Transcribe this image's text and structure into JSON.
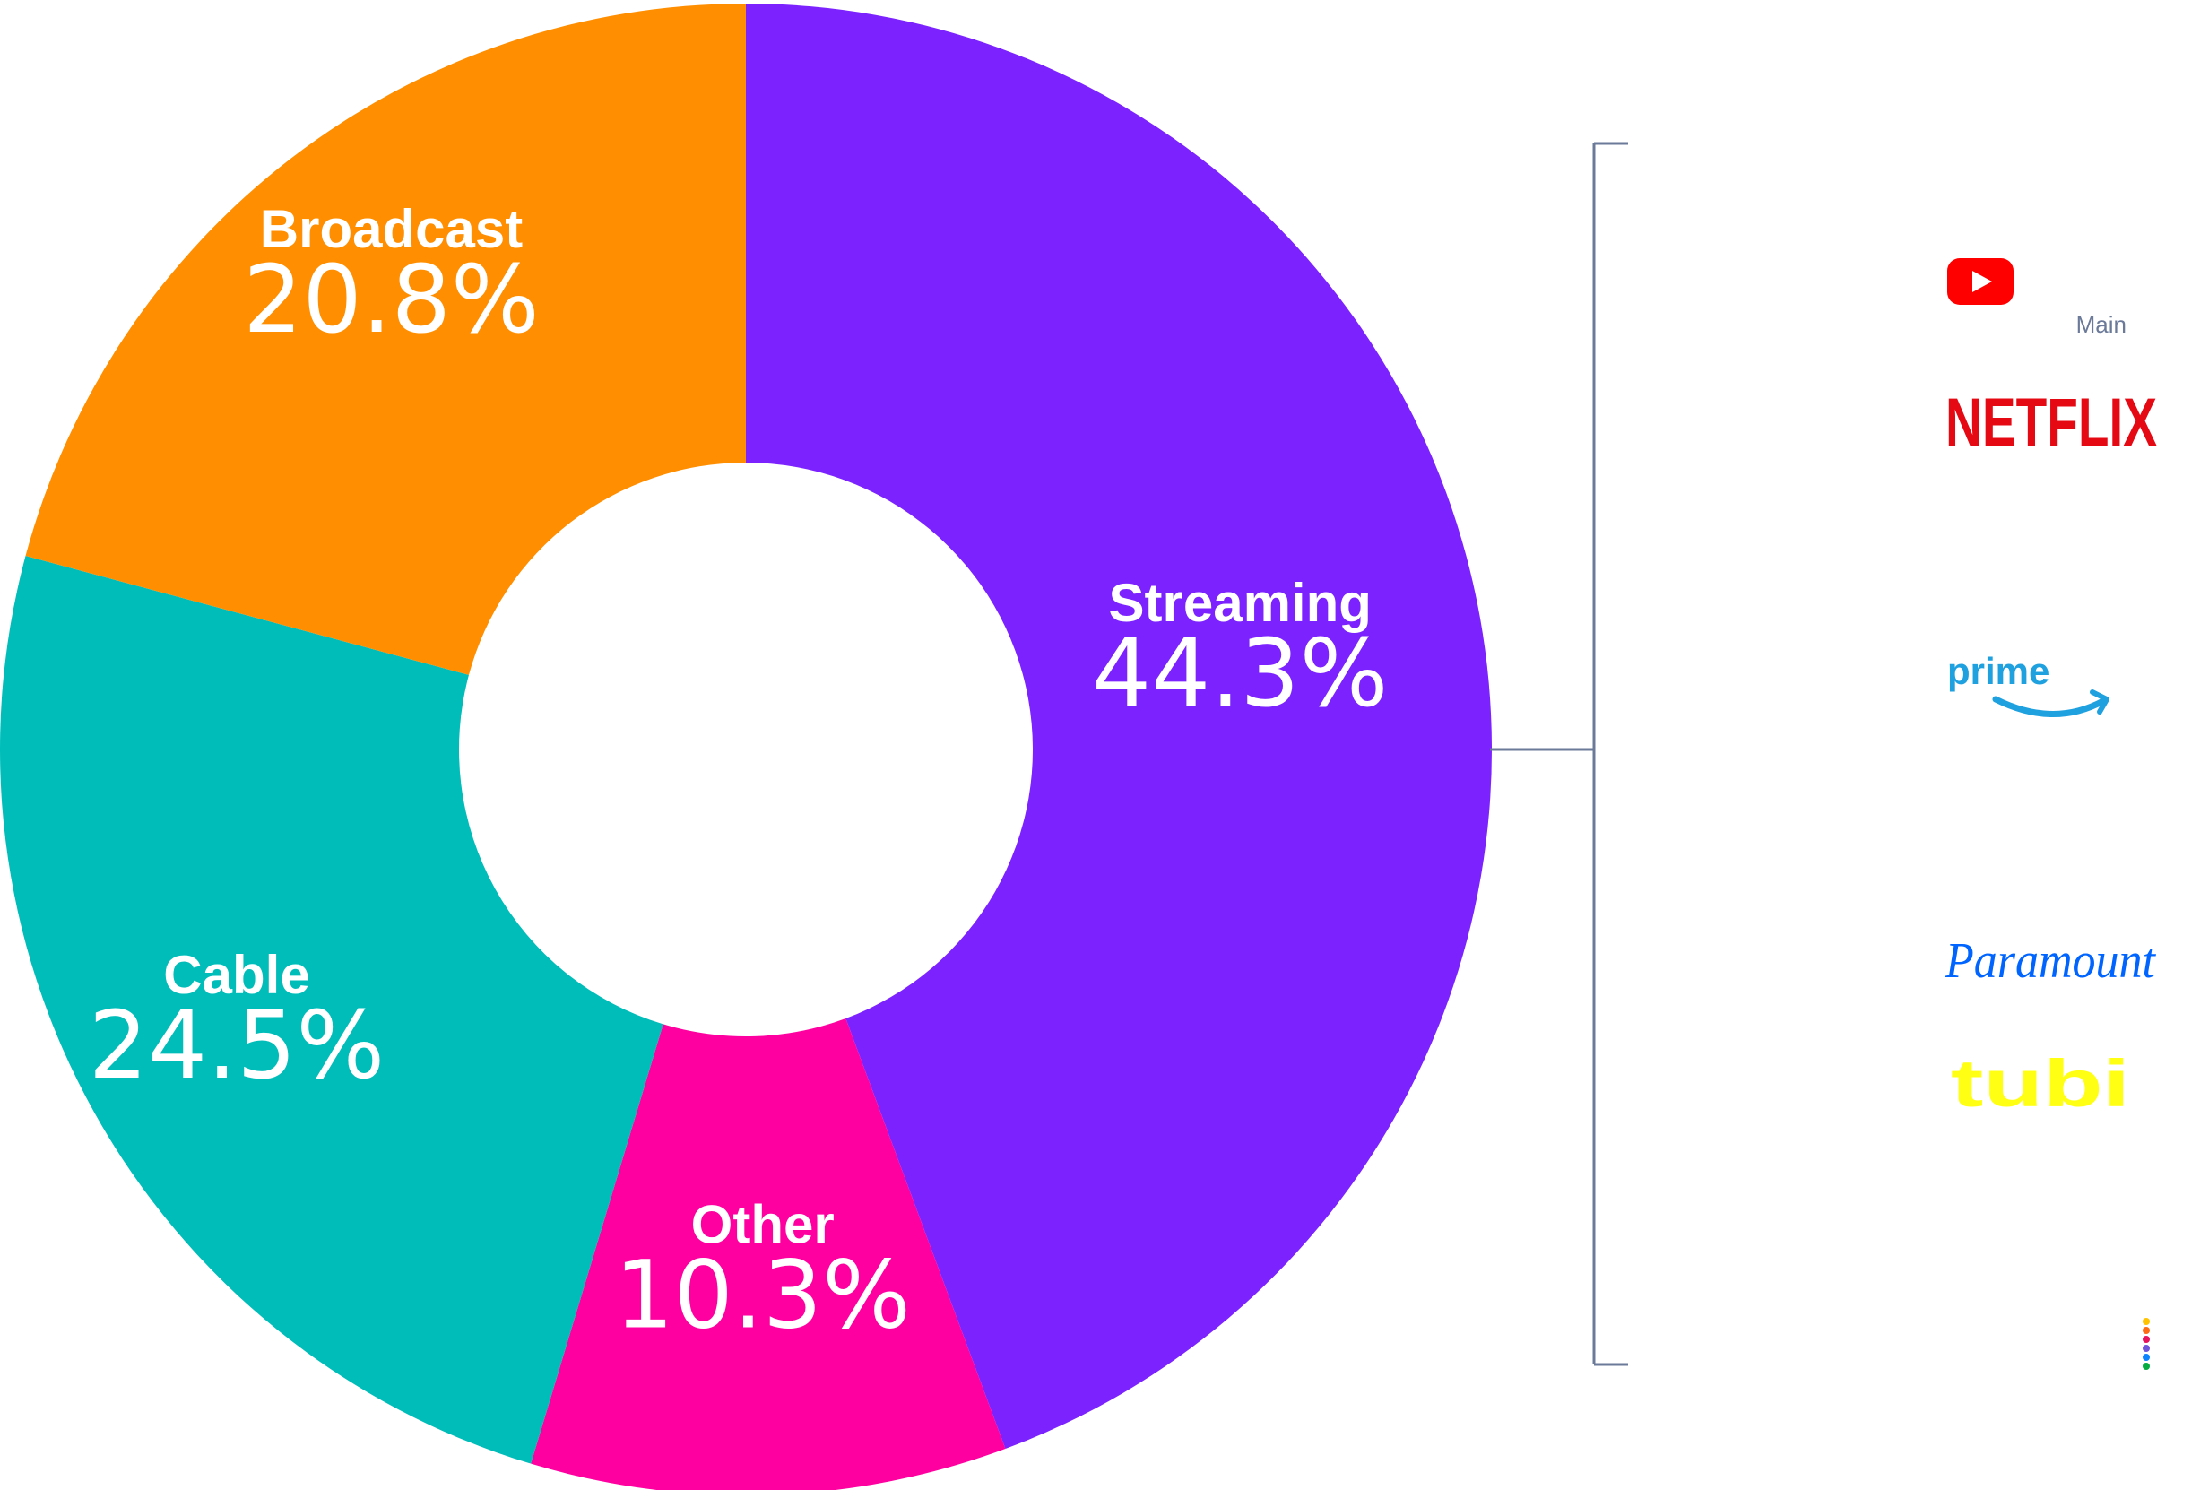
{
  "chart_data": {
    "type": "pie",
    "variant": "donut",
    "categories": [
      "Streaming",
      "Other",
      "Cable",
      "Broadcast"
    ],
    "values": [
      44.3,
      10.3,
      24.5,
      20.8
    ],
    "value_labels": [
      "44.3%",
      "10.3%",
      "24.5%",
      "20.8%"
    ],
    "colors": [
      "#7B22FF",
      "#FF00A0",
      "#00BDBA",
      "#FF8E00"
    ],
    "start": "top",
    "direction": "clockwise"
  },
  "streaming_breakdown": {
    "bracket_color": "#6B7A99",
    "main_label": "Main",
    "logos": [
      {
        "name": "youtube",
        "icon": "youtube-play-icon",
        "color": "#FF0000"
      },
      {
        "name": "netflix",
        "text": "NETFLIX",
        "color": "#E50914"
      },
      {
        "name": "prime",
        "text": "prime",
        "color": "#1FA1E0"
      },
      {
        "name": "paramount",
        "text": "Paramount",
        "color": "#0064FF"
      },
      {
        "name": "tubi",
        "text": "tubi",
        "color": "#FFFF13"
      },
      {
        "name": "peacock",
        "icon": "peacock-dots-icon",
        "dot_colors": [
          "#FFC300",
          "#FF6A14",
          "#E8135C",
          "#6E55DC",
          "#0A84FF",
          "#05AC3F"
        ]
      }
    ]
  }
}
